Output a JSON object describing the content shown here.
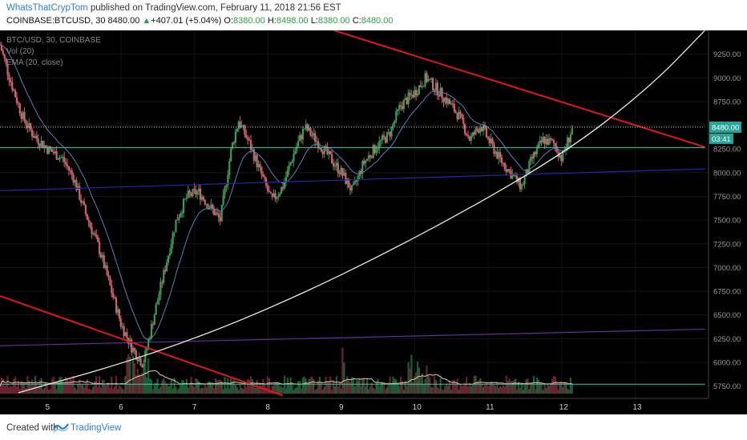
{
  "header": {
    "author": "WhatsThatCrypTom",
    "published": "published on TradingView.com, February 11, 2018 21:56 EST",
    "symbol": "COINBASE:BTCUSD, 30",
    "last": "8480.00",
    "change_arrow": "▲",
    "change": "+407.01 (+5.04%)",
    "o_label": "O:",
    "o": "8380.00",
    "h_label": "H:",
    "h": "8498.00",
    "l_label": "L:",
    "l": "8380.00",
    "c_label": "C:",
    "c": "8480.00"
  },
  "legend": {
    "line1": "BTC/USD, 30, COINBASE",
    "line2": "Vol (20)",
    "line3": "EMA (20, close)"
  },
  "price_tag": {
    "value": "8480.00",
    "timer": "03:41",
    "color": "#26a69a"
  },
  "footer": {
    "created": "Created with",
    "brand": "TradingView"
  },
  "colors": {
    "up": "#3d9a57",
    "down": "#d26170",
    "ema": "#5c7fb8",
    "red_line": "#e01818",
    "curve": "#e8e8e8",
    "navy_line": "#1f2aa6",
    "purple_line": "#6a2ca5",
    "teal_line": "#3ec9a8",
    "dotted": "#cfcfcf"
  },
  "chart_data": {
    "type": "candlestick",
    "y_ticks": [
      9250,
      9000,
      8750,
      8500,
      8250,
      8000,
      7750,
      7500,
      7250,
      7000,
      6750,
      6500,
      6250,
      6000,
      5750
    ],
    "ylim": [
      5620,
      9500
    ],
    "x_ticks": [
      {
        "label": "5",
        "day": 5
      },
      {
        "label": "6",
        "day": 6
      },
      {
        "label": "7",
        "day": 7
      },
      {
        "label": "8",
        "day": 8
      },
      {
        "label": "9",
        "day": 9
      },
      {
        "label": "10",
        "day": 10
      },
      {
        "label": "11",
        "day": 11
      },
      {
        "label": "12",
        "day": 12
      },
      {
        "label": "13",
        "day": 13
      }
    ],
    "xlim": [
      4.35,
      14.0
    ],
    "last_day": 12.15,
    "price_path": [
      [
        4.35,
        9350
      ],
      [
        4.5,
        8950
      ],
      [
        4.65,
        8600
      ],
      [
        4.8,
        8400
      ],
      [
        5.0,
        8250
      ],
      [
        5.2,
        8150
      ],
      [
        5.35,
        7950
      ],
      [
        5.5,
        7600
      ],
      [
        5.7,
        7200
      ],
      [
        5.85,
        6800
      ],
      [
        6.0,
        6400
      ],
      [
        6.15,
        6150
      ],
      [
        6.3,
        5980
      ],
      [
        6.45,
        6500
      ],
      [
        6.6,
        7000
      ],
      [
        6.75,
        7500
      ],
      [
        6.9,
        7750
      ],
      [
        7.05,
        7800
      ],
      [
        7.2,
        7650
      ],
      [
        7.35,
        7500
      ],
      [
        7.5,
        8250
      ],
      [
        7.6,
        8550
      ],
      [
        7.75,
        8300
      ],
      [
        7.9,
        8000
      ],
      [
        8.05,
        7700
      ],
      [
        8.2,
        7850
      ],
      [
        8.35,
        8200
      ],
      [
        8.5,
        8480
      ],
      [
        8.65,
        8350
      ],
      [
        8.8,
        8200
      ],
      [
        9.0,
        8000
      ],
      [
        9.15,
        7800
      ],
      [
        9.3,
        8100
      ],
      [
        9.5,
        8300
      ],
      [
        9.65,
        8400
      ],
      [
        9.8,
        8700
      ],
      [
        10.0,
        8850
      ],
      [
        10.15,
        9000
      ],
      [
        10.3,
        8880
      ],
      [
        10.45,
        8750
      ],
      [
        10.6,
        8600
      ],
      [
        10.75,
        8350
      ],
      [
        10.9,
        8500
      ],
      [
        11.0,
        8350
      ],
      [
        11.15,
        8150
      ],
      [
        11.3,
        8000
      ],
      [
        11.45,
        7850
      ],
      [
        11.6,
        8150
      ],
      [
        11.75,
        8350
      ],
      [
        11.9,
        8300
      ],
      [
        12.0,
        8150
      ],
      [
        12.15,
        8480
      ]
    ],
    "ema_offset": 0.35,
    "lines": [
      {
        "name": "red-upper",
        "points": [
          [
            8.9,
            9500
          ],
          [
            13.95,
            8270
          ]
        ]
      },
      {
        "name": "red-lower",
        "points": [
          [
            4.35,
            6700
          ],
          [
            8.2,
            5650
          ]
        ]
      },
      {
        "name": "teal-support",
        "points": [
          [
            4.35,
            8265
          ],
          [
            13.95,
            8265
          ]
        ]
      },
      {
        "name": "teal-lower",
        "points": [
          [
            4.35,
            5770
          ],
          [
            13.95,
            5770
          ]
        ]
      },
      {
        "name": "navy-trend",
        "points": [
          [
            4.35,
            7810
          ],
          [
            13.95,
            8040
          ]
        ]
      },
      {
        "name": "purple-trend",
        "points": [
          [
            4.35,
            6175
          ],
          [
            13.95,
            6350
          ]
        ]
      },
      {
        "name": "dotted-last",
        "points": [
          [
            4.35,
            8480
          ],
          [
            13.95,
            8480
          ]
        ]
      }
    ],
    "curve_points": [
      [
        4.6,
        5680
      ],
      [
        6.3,
        6050
      ],
      [
        8.0,
        6550
      ],
      [
        10.0,
        7300
      ],
      [
        12.0,
        8180
      ],
      [
        13.2,
        8900
      ],
      [
        13.95,
        9500
      ]
    ]
  }
}
